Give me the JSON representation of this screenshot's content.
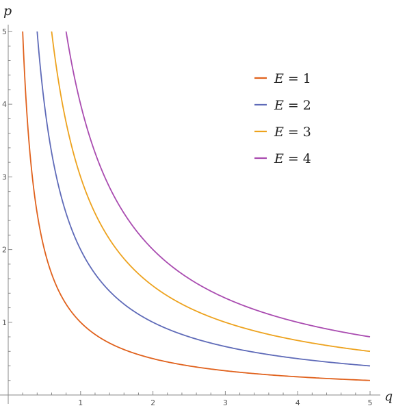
{
  "chart_data": {
    "type": "line",
    "title": "",
    "xlabel": "q",
    "ylabel": "p",
    "xlim": [
      0,
      5
    ],
    "ylim": [
      0,
      5
    ],
    "x_ticks": [
      1,
      2,
      3,
      4,
      5
    ],
    "y_ticks": [
      1,
      2,
      3,
      4,
      5
    ],
    "x_tick_labels": [
      "1",
      "2",
      "3",
      "4",
      "5"
    ],
    "y_tick_labels": [
      "1",
      "2",
      "3",
      "4",
      "5"
    ],
    "grid": false,
    "legend_position": "top-right",
    "legend_var": "E",
    "legend_eq": "=",
    "series": [
      {
        "name": "E = 1",
        "E": "1",
        "k": 1,
        "color": "#e0611c"
      },
      {
        "name": "E = 2",
        "E": "2",
        "k": 2,
        "color": "#5e6ab8"
      },
      {
        "name": "E = 3",
        "E": "3",
        "k": 3,
        "color": "#eda21d"
      },
      {
        "name": "E = 4",
        "E": "4",
        "k": 4,
        "color": "#a94bb0"
      }
    ]
  }
}
